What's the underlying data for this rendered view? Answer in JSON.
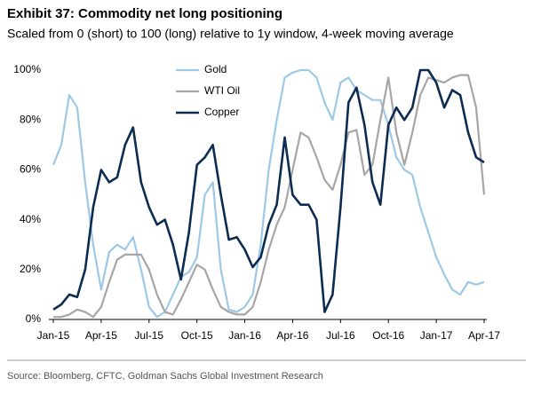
{
  "chart_data": {
    "type": "line",
    "title": "Exhibit 37: Commodity net long positioning",
    "subtitle": "Scaled from 0 (short) to 100 (long) relative to 1y window, 4-week moving average",
    "source": "Source: Bloomberg, CFTC, Goldman Sachs Global Investment Research",
    "categories": [
      "Jan-15",
      null,
      null,
      null,
      null,
      null,
      "Apr-15",
      null,
      null,
      null,
      null,
      null,
      "Jul-15",
      null,
      null,
      null,
      null,
      null,
      "Oct-15",
      null,
      null,
      null,
      null,
      null,
      "Jan-16",
      null,
      null,
      null,
      null,
      null,
      "Apr-16",
      null,
      null,
      null,
      null,
      null,
      "Jul-16",
      null,
      null,
      null,
      null,
      null,
      "Oct-16",
      null,
      null,
      null,
      null,
      null,
      "Jan-17",
      null,
      null,
      null,
      null,
      null,
      "Apr-17"
    ],
    "series": [
      {
        "name": "Gold",
        "color": "#9dc9e6",
        "values": [
          62,
          70,
          90,
          85,
          55,
          30,
          12,
          27,
          30,
          28,
          33,
          20,
          5,
          1,
          3,
          10,
          17,
          19,
          25,
          50,
          55,
          20,
          4,
          3,
          5,
          10,
          30,
          60,
          80,
          97,
          99,
          100,
          100,
          97,
          87,
          80,
          95,
          97,
          92,
          90,
          88,
          88,
          78,
          65,
          60,
          58,
          45,
          35,
          25,
          18,
          12,
          10,
          15,
          14,
          15
        ]
      },
      {
        "name": "WTI Oil",
        "color": "#a6a6a6",
        "values": [
          1,
          1,
          2,
          4,
          3,
          1,
          5,
          15,
          24,
          26,
          26,
          26,
          20,
          10,
          3,
          2,
          8,
          15,
          22,
          20,
          12,
          5,
          3,
          2,
          2,
          5,
          15,
          28,
          38,
          45,
          60,
          75,
          73,
          65,
          56,
          52,
          62,
          75,
          76,
          58,
          62,
          80,
          97,
          75,
          62,
          75,
          90,
          97,
          96,
          95,
          97,
          98,
          98,
          85,
          50
        ]
      },
      {
        "name": "Copper",
        "color": "#0c2c52",
        "values": [
          4,
          6,
          10,
          9,
          20,
          45,
          60,
          55,
          57,
          70,
          77,
          55,
          45,
          38,
          40,
          30,
          16,
          35,
          62,
          65,
          70,
          50,
          32,
          33,
          28,
          21,
          25,
          38,
          46,
          73,
          50,
          46,
          46,
          40,
          3,
          10,
          45,
          87,
          93,
          78,
          55,
          46,
          78,
          85,
          80,
          85,
          100,
          100,
          95,
          85,
          92,
          90,
          75,
          65,
          63
        ]
      }
    ],
    "ylim": [
      0,
      100
    ],
    "yticks": [
      {
        "value": 0,
        "label": "0%"
      },
      {
        "value": 20,
        "label": "20%"
      },
      {
        "value": 40,
        "label": "40%"
      },
      {
        "value": 60,
        "label": "60%"
      },
      {
        "value": 80,
        "label": "80%"
      },
      {
        "value": 100,
        "label": "100%"
      }
    ],
    "grid": false,
    "legend": "top-left"
  }
}
